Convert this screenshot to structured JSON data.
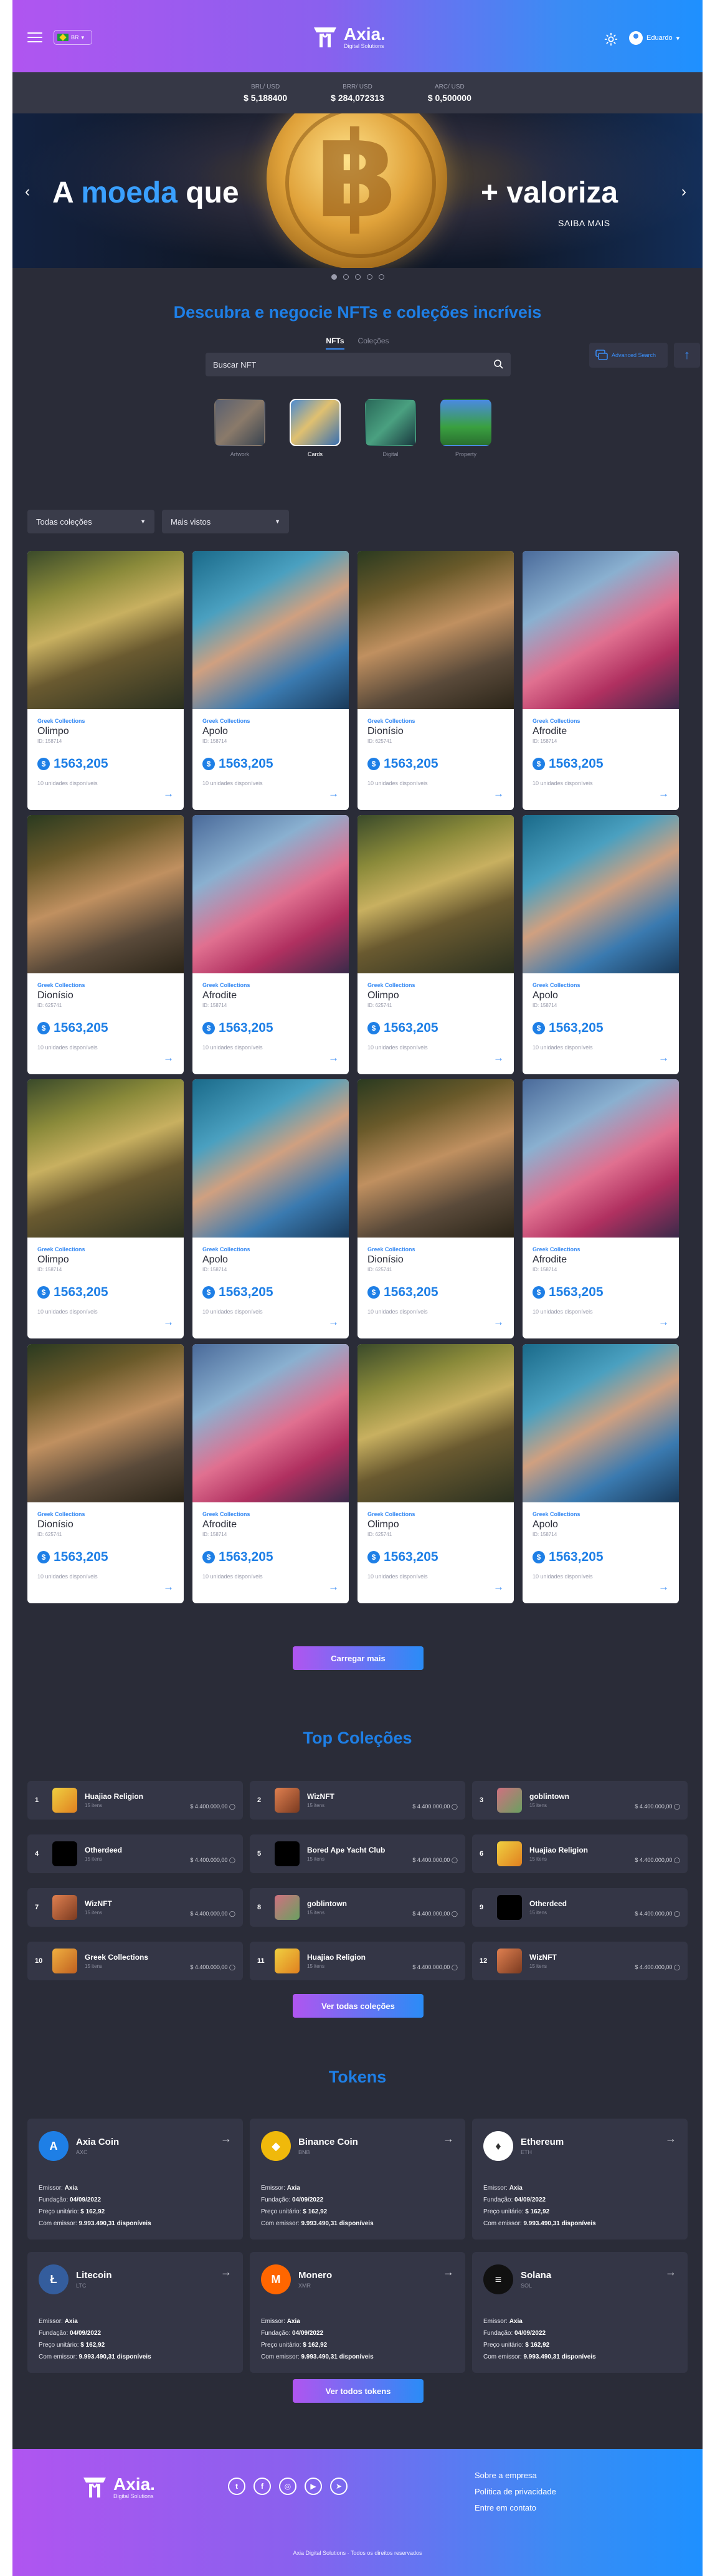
{
  "header": {
    "lang": "BR",
    "brand": "Axia.",
    "brand_sub": "Digital Solutions",
    "user": "Eduardo"
  },
  "ticker": [
    {
      "label": "BRL/ USD",
      "value": "$ 5,188400"
    },
    {
      "label": "BRR/ USD",
      "value": "$ 284,072313"
    },
    {
      "label": "ARC/ USD",
      "value": "$ 0,500000"
    }
  ],
  "hero": {
    "left_a": "A ",
    "left_b": "moeda",
    "left_c": " que",
    "right": "+ valoriza",
    "link": "SAIBA MAIS"
  },
  "discover": {
    "title": "Descubra e negocie NFTs e coleções incríveis",
    "tab_nfts": "NFTs",
    "tab_colecoes": "Coleções",
    "search_placeholder": "Buscar NFT",
    "advanced": "Advanced Search",
    "categories": [
      "Artwork",
      "Cards",
      "Digital",
      "Property"
    ]
  },
  "filters": {
    "collection": "Todas coleções",
    "sort": "Mais vistos"
  },
  "colors": {
    "accent": "#1e7fe6",
    "gradient_start": "#b055f0",
    "gradient_end": "#1e90ff",
    "panel": "#343646",
    "bg": "#2a2c38"
  },
  "card_common": {
    "collection": "Greek Collections",
    "price": "1563,205",
    "available": "10 unidades disponíveis"
  },
  "cards": [
    {
      "name": "Olimpo",
      "id": "ID: 158714"
    },
    {
      "name": "Apolo",
      "id": "ID: 158714"
    },
    {
      "name": "Dionísio",
      "id": "ID: 625741"
    },
    {
      "name": "Afrodite",
      "id": "ID: 158714"
    },
    {
      "name": "Dionísio",
      "id": "ID: 625741"
    },
    {
      "name": "Afrodite",
      "id": "ID: 158714"
    },
    {
      "name": "Olimpo",
      "id": "ID: 625741"
    },
    {
      "name": "Apolo",
      "id": "ID: 158714"
    },
    {
      "name": "Olimpo",
      "id": "ID: 158714"
    },
    {
      "name": "Apolo",
      "id": "ID: 158714"
    },
    {
      "name": "Dionísio",
      "id": "ID: 625741"
    },
    {
      "name": "Afrodite",
      "id": "ID: 158714"
    },
    {
      "name": "Dionísio",
      "id": "ID: 625741"
    },
    {
      "name": "Afrodite",
      "id": "ID: 158714"
    },
    {
      "name": "Olimpo",
      "id": "ID: 625741"
    },
    {
      "name": "Apolo",
      "id": "ID: 158714"
    }
  ],
  "load_more": "Carregar mais",
  "top": {
    "title": "Top Coleções",
    "items_label": "15 itens",
    "price": "$ 4.400.000,00",
    "items": [
      {
        "rank": "1",
        "name": "Huajiao Religion"
      },
      {
        "rank": "2",
        "name": "WizNFT"
      },
      {
        "rank": "3",
        "name": "goblintown"
      },
      {
        "rank": "4",
        "name": "Otherdeed"
      },
      {
        "rank": "5",
        "name": "Bored Ape Yacht Club"
      },
      {
        "rank": "6",
        "name": "Huajiao Religion"
      },
      {
        "rank": "7",
        "name": "WizNFT"
      },
      {
        "rank": "8",
        "name": "goblintown"
      },
      {
        "rank": "9",
        "name": "Otherdeed"
      },
      {
        "rank": "10",
        "name": "Greek Collections"
      },
      {
        "rank": "11",
        "name": "Huajiao Religion"
      },
      {
        "rank": "12",
        "name": "WizNFT"
      }
    ],
    "button": "Ver todas coleções"
  },
  "tokens": {
    "title": "Tokens",
    "emissor_label": "Emissor:",
    "emissor": "Axia",
    "fundacao_label": "Fundação:",
    "fundacao": "04/09/2022",
    "preco_label": "Preço unitário:",
    "preco": "$ 162,92",
    "com_label": "Com emissor:",
    "com": "9.993.490,31 disponíveis",
    "items": [
      {
        "name": "Axia Coin",
        "sym": "AXC",
        "glyph": "A",
        "color": "#1e7fe6"
      },
      {
        "name": "Binance Coin",
        "sym": "BNB",
        "glyph": "◆",
        "color": "#f0b90b"
      },
      {
        "name": "Ethereum",
        "sym": "ETH",
        "glyph": "♦",
        "color": "#ffffff"
      },
      {
        "name": "Litecoin",
        "sym": "LTC",
        "glyph": "Ł",
        "color": "#345d9d"
      },
      {
        "name": "Monero",
        "sym": "XMR",
        "glyph": "M",
        "color": "#ff6600"
      },
      {
        "name": "Solana",
        "sym": "SOL",
        "glyph": "≡",
        "color": "#111111"
      }
    ],
    "button": "Ver todos tokens"
  },
  "footer": {
    "links": [
      "Sobre a empresa",
      "Política de privacidade",
      "Entre em contato"
    ],
    "copyright": "Axia Digital Solutions · Todos os direitos reservados",
    "socials": [
      "twitter-icon",
      "facebook-icon",
      "instagram-icon",
      "youtube-icon",
      "telegram-icon"
    ]
  }
}
